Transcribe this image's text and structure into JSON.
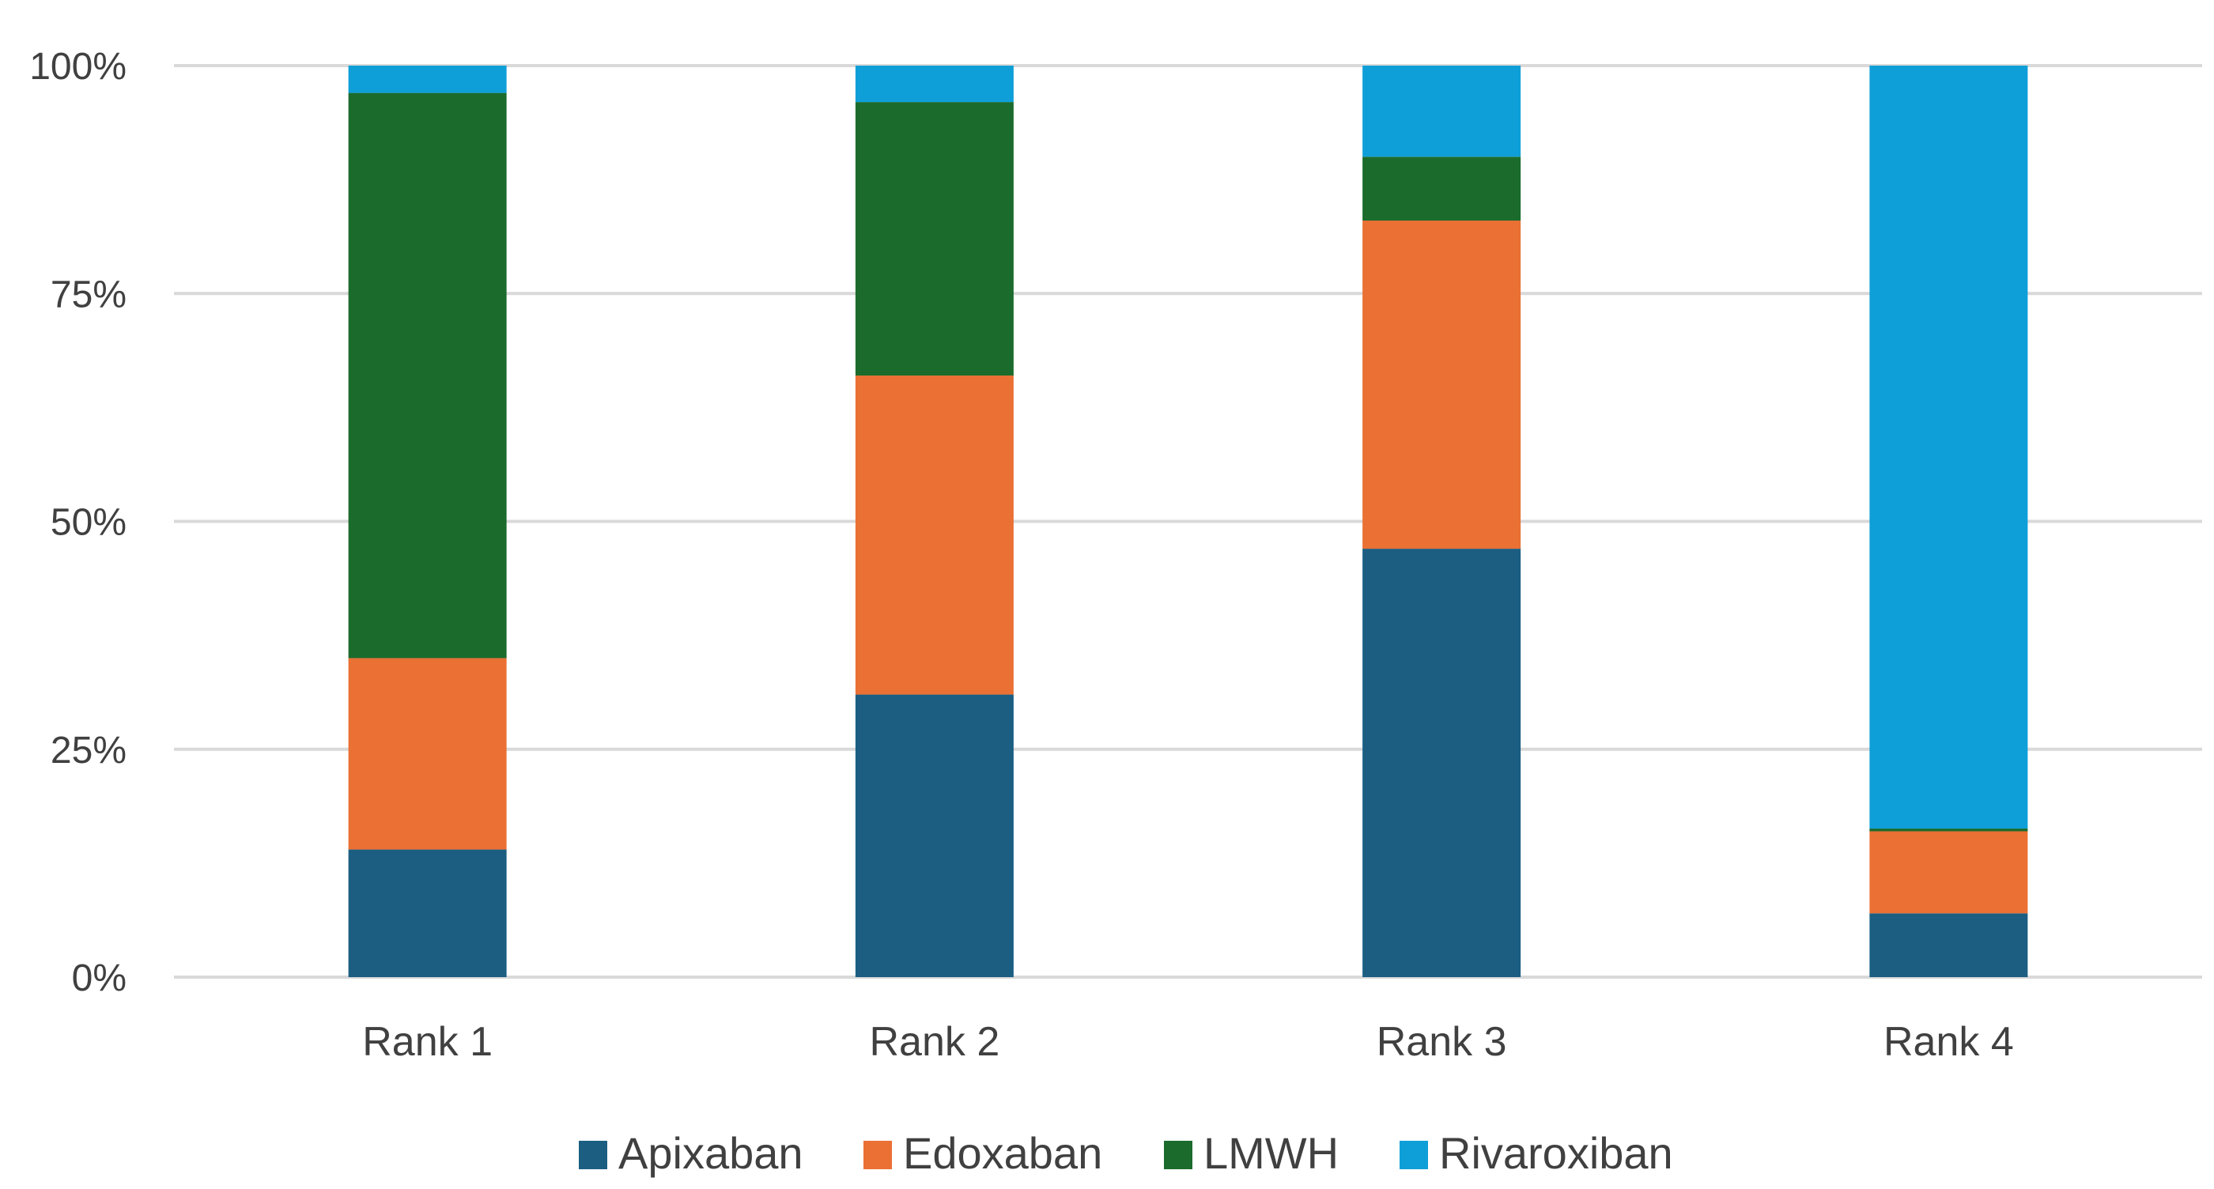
{
  "chart_data": {
    "type": "bar",
    "stacked": true,
    "percent_stacked": true,
    "categories": [
      "Rank 1",
      "Rank 2",
      "Rank 3",
      "Rank 4"
    ],
    "series": [
      {
        "name": "Apixaban",
        "color": "#1b5e82",
        "values": [
          14,
          31,
          47,
          7
        ]
      },
      {
        "name": "Edoxaban",
        "color": "#ea7034",
        "values": [
          21,
          35,
          36,
          9
        ]
      },
      {
        "name": "LMWH",
        "color": "#1b6b2c",
        "values": [
          62,
          30,
          7,
          0.3
        ]
      },
      {
        "name": "Rivaroxiban",
        "color": "#0f9fd8",
        "values": [
          3,
          4,
          10,
          83.7
        ]
      }
    ],
    "ylim": [
      0,
      100
    ],
    "yticks": [
      "0%",
      "25%",
      "50%",
      "75%",
      "100%"
    ],
    "ytick_values": [
      0,
      25,
      50,
      75,
      100
    ],
    "grid": true,
    "legend_position": "bottom",
    "title": "",
    "xlabel": "",
    "ylabel": ""
  }
}
